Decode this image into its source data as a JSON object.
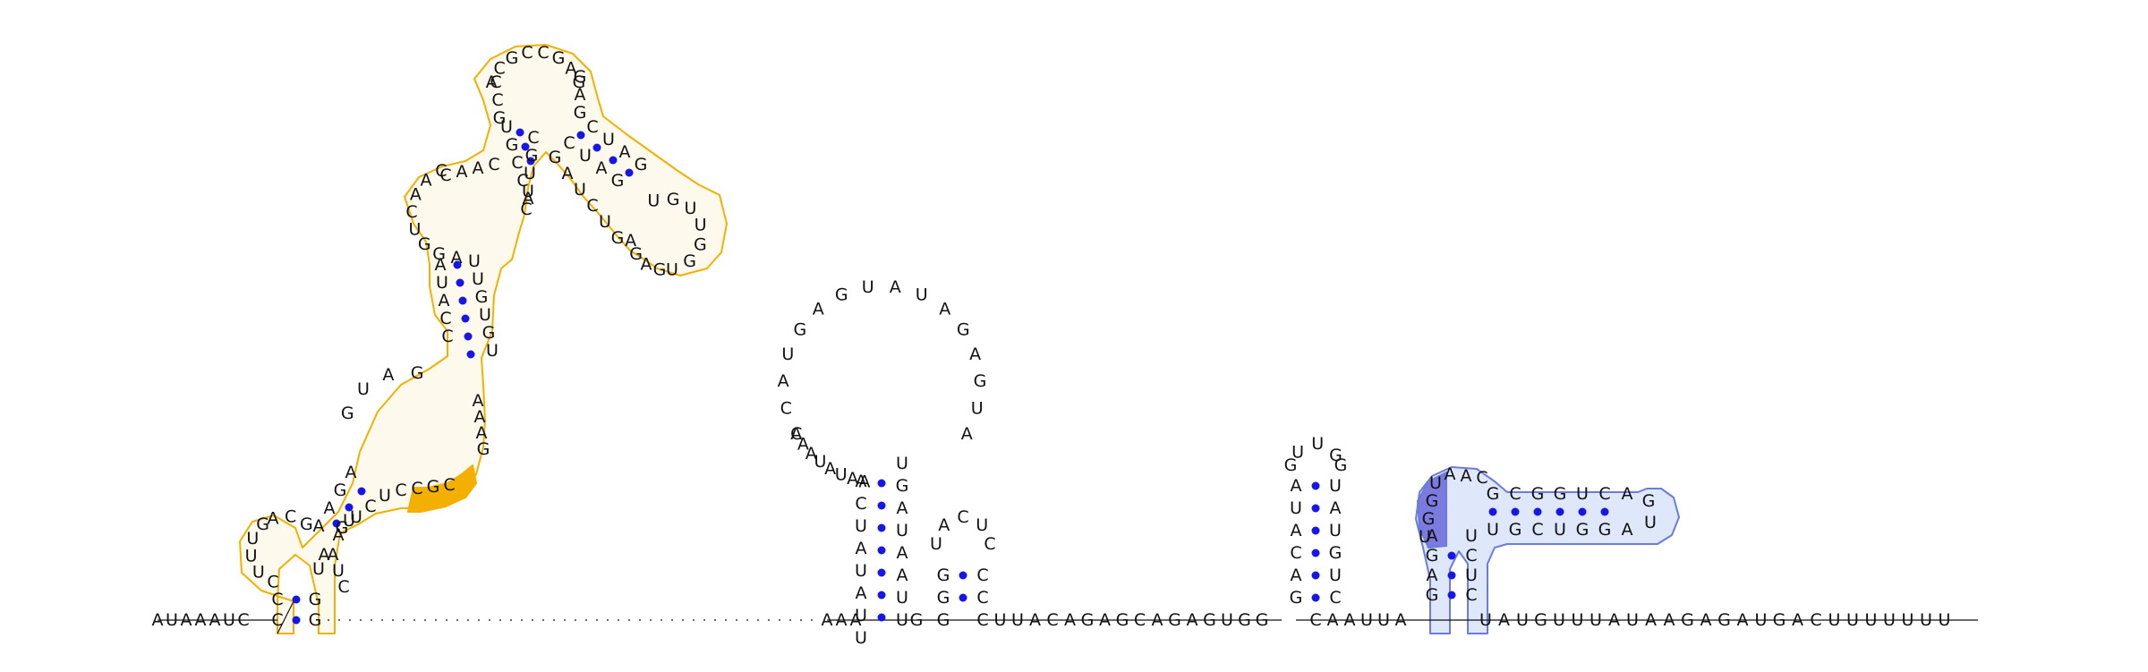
{
  "colors": {
    "nucleotide_text": "#111111",
    "base_pair_dot": "#1616e8",
    "highlight_orange_outline": "#f3b000",
    "highlight_orange_fill": "#fdf9ec",
    "highlight_blue_outline": "#6c7be0",
    "highlight_blue_fill": "#dfe7fb",
    "highlight_blue_dark": "#7a7adf"
  },
  "structure": {
    "five_prime_tail": "AUAAAUC",
    "hairpin_1": {
      "outer_stem_5p": "CGCA",
      "outer_stem_3p": "GCUA",
      "loop": "UUUGACGA",
      "inner_stem_5p": "AAGA",
      "inner_loop_top": "GUAG",
      "mid_stem_5p": "AUACC",
      "mid_stem_3p": "UUGUG",
      "internal_loop_left": "UGGACAAC",
      "upper_stem_5p": "UGCCG",
      "upper_stem_3p": "CUACG",
      "apical_loop": "AACGCCGAG",
      "branch_stem_5p": "CUAG",
      "branch_stem_3p": "GAUC",
      "branch_loop": "UGUUGGUUAGAGGU",
      "bulge_right": "UCUG",
      "orange_dark_segment": "CCGC",
      "lower_right_side": "AAAG",
      "right_bottom": "CUUCCG"
    },
    "linker_dashed": "",
    "hairpin_2": {
      "stem_5p": "AAAUAUCA",
      "stem_3p": "UGAUAAU",
      "loop": "ACAUGAGUAUAGAGUA",
      "loop_left_side": "AAUAUAAC"
    },
    "hairpin_3": {
      "stem_5p": "GG",
      "stem_3p": "CC",
      "loop": "UACUC"
    },
    "linker_1": "CUUACAGAGCAGAGUGG",
    "hairpin_4": {
      "stem_5p": "AUACAG",
      "stem_3p": "UAUGUC",
      "loop": "GUUG"
    },
    "linker_2": "CAAUUA",
    "hairpin_5": {
      "stem_5p": "AGAG",
      "stem_3p": "UCUC",
      "inner_stem_5p": "CGCGGUC",
      "inner_stem_3p": "GGUCGU",
      "loop_dark": "GUGU",
      "loop": "AAC",
      "tip": "AGU"
    },
    "three_prime_tail": "UAUGUUUAUAAGAGAUGACUUUUUUU"
  },
  "labels": {
    "tail_5p": [
      "A",
      "U",
      "A",
      "A",
      "A",
      "U",
      "C"
    ],
    "h1_outer_5p": [
      "C",
      "U",
      "U",
      "U",
      "G"
    ],
    "h1_top_left": [
      "A",
      "C",
      "G"
    ],
    "h1_stemA_5p": [
      "A",
      "A",
      "G",
      "A"
    ],
    "h1_loopA_top": [
      "G",
      "U",
      "A",
      "G"
    ],
    "h1_bottom_right": [
      "G",
      "A",
      "C",
      "U",
      "C"
    ],
    "h1_orange_dark": [
      "C",
      "C",
      "G",
      "C"
    ],
    "h1_right_col": [
      "A",
      "A",
      "A",
      "G",
      "U",
      "G",
      "U",
      "G",
      "U",
      "U",
      "A",
      "U"
    ],
    "h1_left_col": [
      "A",
      "U",
      "A",
      "C",
      "C"
    ],
    "h1_int_left": [
      "A",
      "G",
      "G",
      "U",
      "C",
      "A",
      "A",
      "C"
    ],
    "h1_upper_5p": [
      "U",
      "G",
      "C",
      "C",
      "A"
    ],
    "h1_apical": [
      "A",
      "C",
      "G",
      "C",
      "C",
      "G",
      "A",
      "G"
    ],
    "h1_upper_3p": [
      "C",
      "U",
      "A",
      "G",
      "U",
      "U",
      "C"
    ],
    "h1_branch_5p": [
      "C",
      "U",
      "A",
      "G"
    ],
    "h1_branch_3p": [
      "G",
      "A",
      "U",
      "C",
      "U",
      "G",
      "A",
      "G",
      "A",
      "G"
    ],
    "h1_branch_loop": [
      "U",
      "G",
      "U",
      "U",
      "G",
      "G",
      "U"
    ],
    "h2_stem_5p": [
      "A",
      "A",
      "A",
      "U",
      "A",
      "U",
      "C",
      "A"
    ],
    "h2_stem_3p": [
      "U",
      "G",
      "A",
      "U",
      "A",
      "A",
      "U"
    ],
    "h2_loop": [
      "A",
      "C",
      "A",
      "U",
      "G",
      "A",
      "G",
      "U",
      "A",
      "U",
      "A",
      "G",
      "A",
      "G",
      "U",
      "A"
    ],
    "h2_loop_left": [
      "A",
      "A",
      "U",
      "A",
      "U",
      "A",
      "A",
      "C"
    ],
    "h3": [
      "G",
      "G",
      "U",
      "A",
      "C",
      "U",
      "C",
      "C",
      "C"
    ],
    "linker_1": [
      "C",
      "U",
      "U",
      "A",
      "C",
      "A",
      "G",
      "A",
      "G",
      "C",
      "A",
      "G",
      "A",
      "G",
      "U",
      "G",
      "G"
    ],
    "h4_5p": [
      "A",
      "U",
      "A",
      "C",
      "A",
      "G"
    ],
    "h4_3p": [
      "U",
      "A",
      "U",
      "G",
      "U",
      "C"
    ],
    "h4_loop": [
      "U",
      "U",
      "G"
    ],
    "linker_2": [
      "C",
      "A",
      "A",
      "U",
      "U",
      "A"
    ],
    "h5_5p": [
      "A",
      "G",
      "A",
      "G"
    ],
    "h5_3p": [
      "U",
      "C",
      "U",
      "C"
    ],
    "h5_dark": [
      "U",
      "G",
      "G",
      "U"
    ],
    "h5_loop": [
      "A",
      "A",
      "C"
    ],
    "h5_inner_5p": [
      "G",
      "C",
      "G",
      "G",
      "U",
      "C",
      "A"
    ],
    "h5_inner_3p": [
      "U",
      "G",
      "C",
      "U",
      "G",
      "G",
      "A"
    ],
    "h5_tip": [
      "G",
      "U"
    ],
    "tail_3p": [
      "U",
      "A",
      "U",
      "G",
      "U",
      "U",
      "U",
      "A",
      "U",
      "A",
      "A",
      "G",
      "A",
      "G",
      "A",
      "U",
      "G",
      "A",
      "C",
      "U",
      "U",
      "U",
      "U",
      "U",
      "U",
      "U"
    ]
  }
}
